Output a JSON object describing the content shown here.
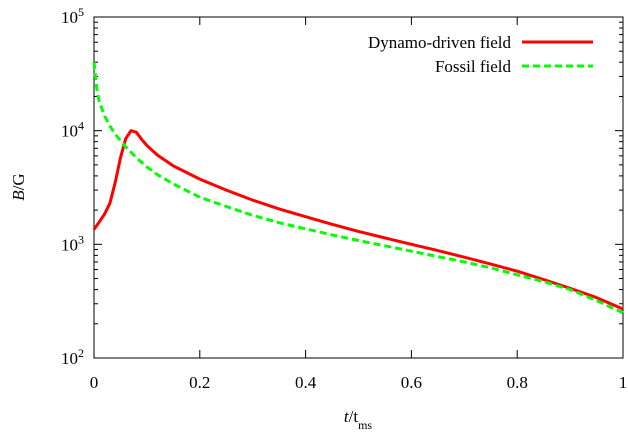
{
  "chart_data": {
    "type": "line",
    "xlabel": {
      "italic": "t",
      "main": "/t",
      "subscript": "ms"
    },
    "ylabel": {
      "italic": "B",
      "main": "/G"
    },
    "xlim": [
      0,
      1
    ],
    "ylim": [
      100,
      100000
    ],
    "yscale": "log",
    "grid": false,
    "legend_position": "top-right",
    "x_ticks": [
      {
        "value": 0,
        "label": "0"
      },
      {
        "value": 0.2,
        "label": "0.2"
      },
      {
        "value": 0.4,
        "label": "0.4"
      },
      {
        "value": 0.6,
        "label": "0.6"
      },
      {
        "value": 0.8,
        "label": "0.8"
      },
      {
        "value": 1,
        "label": "1"
      }
    ],
    "y_ticks": [
      {
        "value": 100,
        "base": "10",
        "exp": "2"
      },
      {
        "value": 1000,
        "base": "10",
        "exp": "3"
      },
      {
        "value": 10000,
        "base": "10",
        "exp": "4"
      },
      {
        "value": 100000,
        "base": "10",
        "exp": "5"
      }
    ],
    "series": [
      {
        "name": "Dynamo-driven field",
        "color": "#ff0000",
        "dash": "solid",
        "x": [
          0,
          0.01,
          0.02,
          0.03,
          0.04,
          0.05,
          0.06,
          0.07,
          0.08,
          0.09,
          0.1,
          0.12,
          0.15,
          0.2,
          0.25,
          0.3,
          0.35,
          0.4,
          0.45,
          0.5,
          0.55,
          0.6,
          0.65,
          0.7,
          0.75,
          0.8,
          0.85,
          0.9,
          0.95,
          1.0
        ],
        "y": [
          1350,
          1580,
          1850,
          2300,
          3500,
          5800,
          8500,
          10000,
          9700,
          8400,
          7400,
          6100,
          4900,
          3750,
          3000,
          2450,
          2050,
          1750,
          1500,
          1300,
          1140,
          1000,
          880,
          770,
          670,
          580,
          490,
          410,
          340,
          270
        ]
      },
      {
        "name": "Fossil field",
        "color": "#00ff00",
        "dash": "dashed",
        "x": [
          0,
          0.005,
          0.01,
          0.02,
          0.03,
          0.04,
          0.05,
          0.06,
          0.08,
          0.1,
          0.12,
          0.15,
          0.2,
          0.25,
          0.3,
          0.35,
          0.4,
          0.45,
          0.5,
          0.55,
          0.6,
          0.65,
          0.7,
          0.75,
          0.8,
          0.85,
          0.9,
          0.95,
          1.0
        ],
        "y": [
          40000,
          24000,
          18000,
          13500,
          11000,
          9300,
          8200,
          7200,
          5800,
          4800,
          4100,
          3400,
          2600,
          2150,
          1800,
          1550,
          1370,
          1210,
          1080,
          970,
          870,
          780,
          700,
          620,
          540,
          470,
          400,
          320,
          250
        ]
      }
    ]
  }
}
